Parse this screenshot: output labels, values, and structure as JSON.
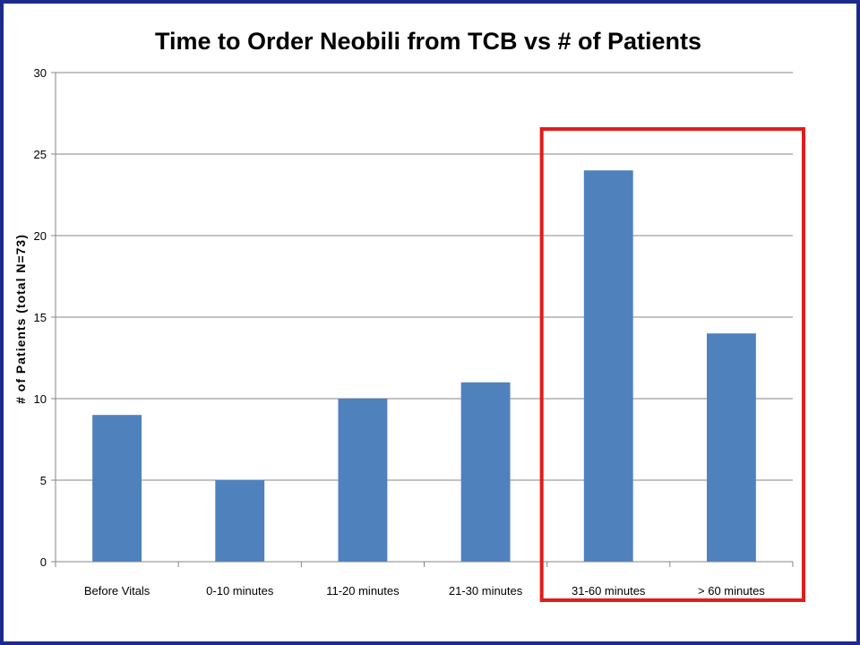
{
  "chart_data": {
    "type": "bar",
    "title": "Time to Order Neobili from TCB vs # of Patients",
    "xlabel": "",
    "ylabel": "# of Patients (total N=73)",
    "categories": [
      "Before Vitals",
      "0-10 minutes",
      "11-20 minutes",
      "21-30 minutes",
      "31-60 minutes",
      "> 60 minutes"
    ],
    "values": [
      9,
      5,
      10,
      11,
      24,
      14
    ],
    "ylim": [
      0,
      30
    ],
    "yticks": [
      0,
      5,
      10,
      15,
      20,
      25,
      30
    ],
    "grid": true,
    "legend": "none",
    "highlight": {
      "categories": [
        "31-60 minutes",
        "> 60 minutes"
      ],
      "color": "#e31b1b"
    },
    "colors": {
      "bar": "#4f81bd",
      "grid": "#868686",
      "frame": "#1c2a8c"
    }
  }
}
